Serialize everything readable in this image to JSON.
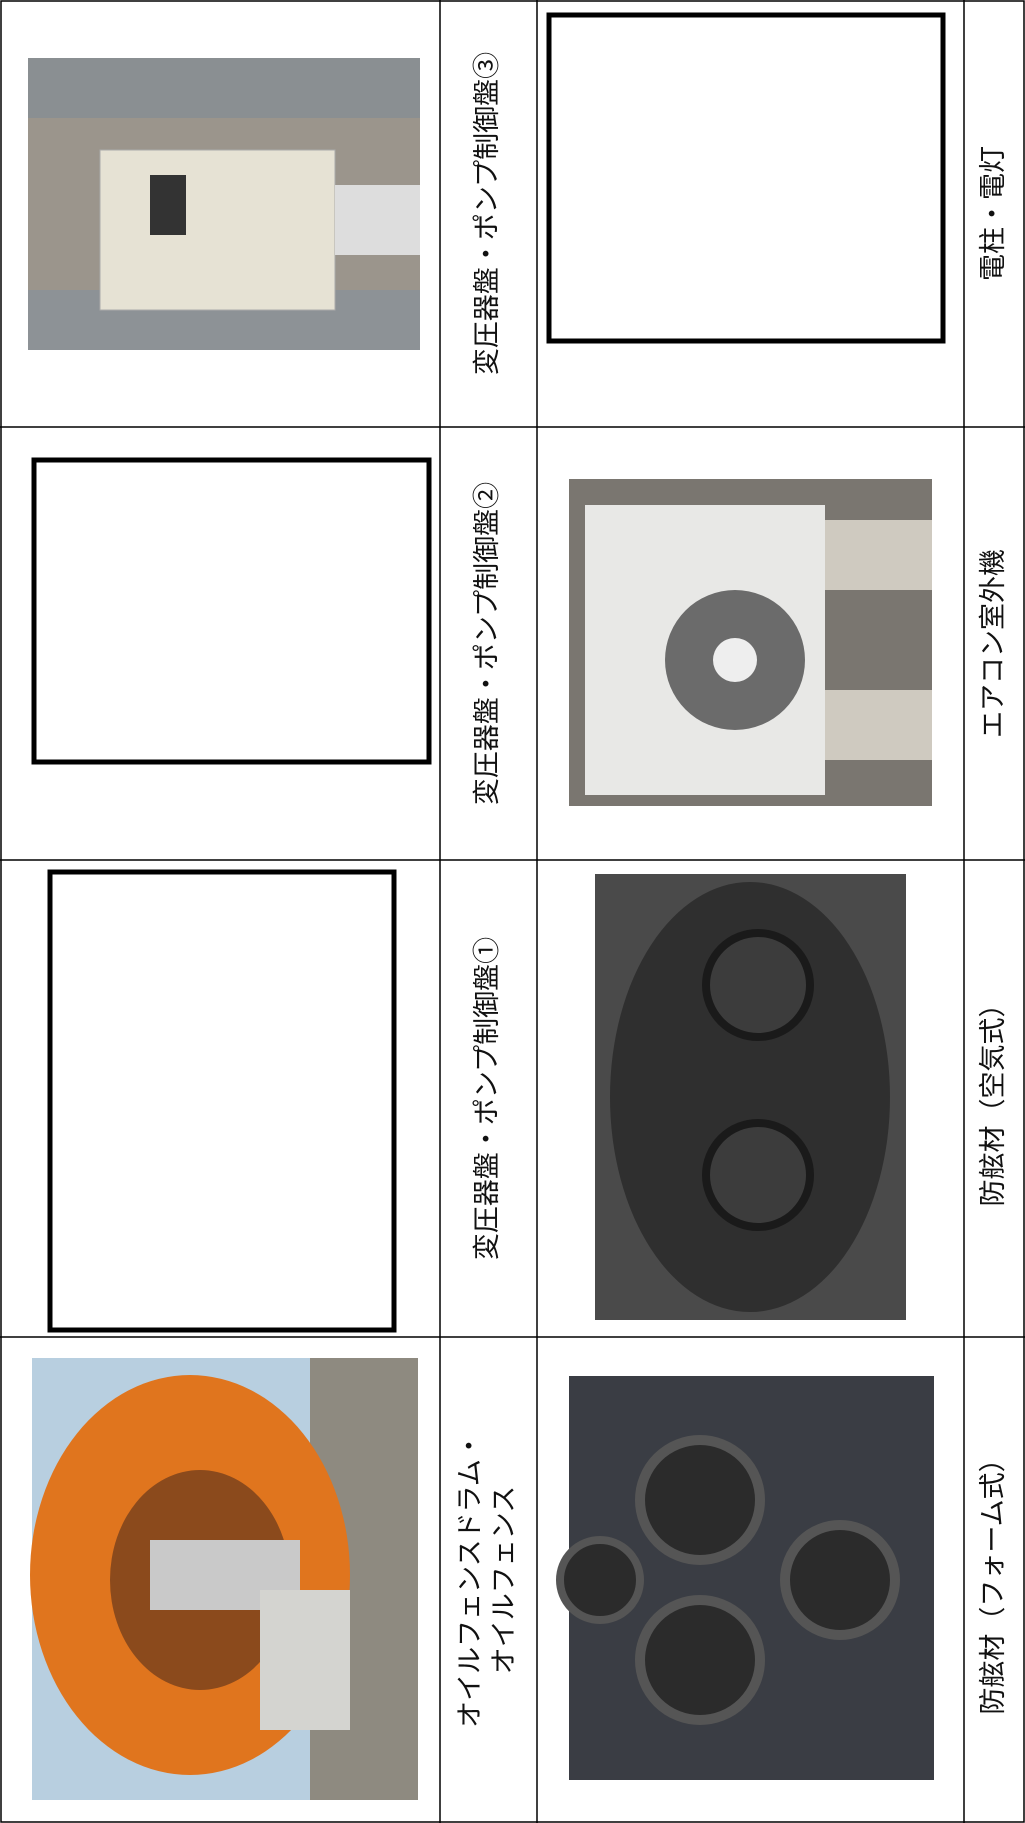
{
  "table": {
    "rows": [
      [
        {
          "label": [
            "変圧器盤・ポンプ制御盤③"
          ]
        },
        {
          "label": [
            "電柱・電灯"
          ]
        }
      ],
      [
        {
          "label": [
            "変圧器盤・ポンプ制御盤②"
          ]
        },
        {
          "label": [
            "エアコン室外機"
          ]
        }
      ],
      [
        {
          "label": [
            "変圧器盤・ポンプ制御盤①"
          ]
        },
        {
          "label": [
            "防舷材（空気式）"
          ]
        }
      ],
      [
        {
          "label": [
            "オイルフェンスドラム・",
            "オイルフェンス"
          ]
        },
        {
          "label": [
            "防舷材（フォーム式）"
          ]
        }
      ]
    ]
  }
}
